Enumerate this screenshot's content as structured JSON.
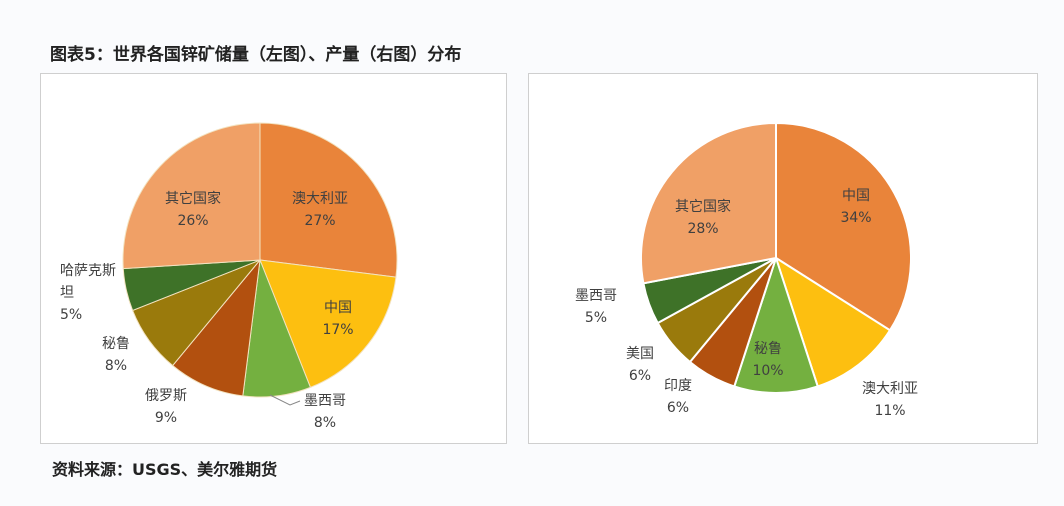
{
  "title": "图表5：世界各国锌矿储量（左图）、产量（右图）分布",
  "source": "资料来源：USGS、美尔雅期货",
  "chart_data": [
    {
      "type": "pie",
      "title": "世界各国锌矿储量分布",
      "slices": [
        {
          "label": "澳大利亚",
          "value": 27,
          "text": "27%",
          "color": "#E9843A"
        },
        {
          "label": "中国",
          "value": 17,
          "text": "17%",
          "color": "#FDBF10"
        },
        {
          "label": "墨西哥",
          "value": 8,
          "text": "8%",
          "color": "#74B040"
        },
        {
          "label": "俄罗斯",
          "value": 9,
          "text": "9%",
          "color": "#B2500F"
        },
        {
          "label": "秘鲁",
          "value": 8,
          "text": "8%",
          "color": "#9A7A0C"
        },
        {
          "label": "哈萨克斯坦",
          "value": 5,
          "text": "5%",
          "color": "#3E7228"
        },
        {
          "label": "其它国家",
          "value": 26,
          "text": "26%",
          "color": "#F0A066"
        }
      ]
    },
    {
      "type": "pie",
      "title": "世界各国锌矿产量分布",
      "slices": [
        {
          "label": "中国",
          "value": 34,
          "text": "34%",
          "color": "#E9843A"
        },
        {
          "label": "澳大利亚",
          "value": 11,
          "text": "11%",
          "color": "#FDBF10"
        },
        {
          "label": "秘鲁",
          "value": 10,
          "text": "10%",
          "color": "#74B040"
        },
        {
          "label": "印度",
          "value": 6,
          "text": "6%",
          "color": "#B2500F"
        },
        {
          "label": "美国",
          "value": 6,
          "text": "6%",
          "color": "#9A7A0C"
        },
        {
          "label": "墨西哥",
          "value": 5,
          "text": "5%",
          "color": "#3E7228"
        },
        {
          "label": "其它国家",
          "value": 28,
          "text": "28%",
          "color": "#F0A066"
        }
      ]
    }
  ]
}
